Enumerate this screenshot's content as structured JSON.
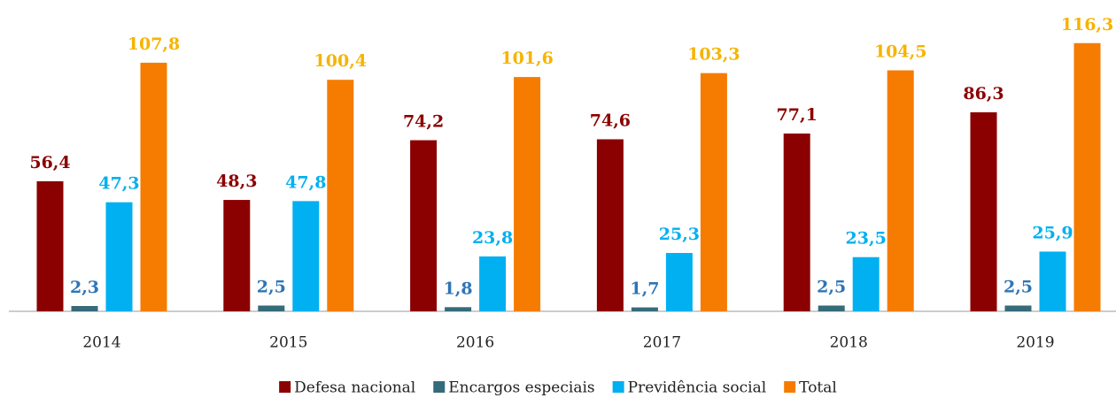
{
  "chart_data": {
    "type": "bar",
    "categories": [
      "2014",
      "2015",
      "2016",
      "2017",
      "2018",
      "2019"
    ],
    "series": [
      {
        "name": "Defesa nacional",
        "color": "#8b0000",
        "label_color": "#8b0000",
        "values": [
          56.4,
          48.3,
          74.2,
          74.6,
          77.1,
          86.3
        ],
        "value_labels": [
          "56,4",
          "48,3",
          "74,2",
          "74,6",
          "77,1",
          "86,3"
        ]
      },
      {
        "name": "Encargos especiais",
        "color": "#356b7a",
        "label_color": "#2e75b6",
        "values": [
          2.3,
          2.5,
          1.8,
          1.7,
          2.5,
          2.5
        ],
        "value_labels": [
          "2,3",
          "2,5",
          "1,8",
          "1,7",
          "2,5",
          "2,5"
        ]
      },
      {
        "name": "Previdência social",
        "color": "#00b0f0",
        "label_color": "#00b0f0",
        "values": [
          47.3,
          47.8,
          23.8,
          25.3,
          23.5,
          25.9
        ],
        "value_labels": [
          "47,3",
          "47,8",
          "23,8",
          "25,3",
          "23,5",
          "25,9"
        ]
      },
      {
        "name": "Total",
        "color": "#f57c00",
        "label_color": "#f5b400",
        "values": [
          107.8,
          100.4,
          101.6,
          103.3,
          104.5,
          116.3
        ],
        "value_labels": [
          "107,8",
          "100,4",
          "101,6",
          "103,3",
          "104,5",
          "116,3"
        ]
      }
    ],
    "ylim": [
      0,
      135
    ]
  }
}
